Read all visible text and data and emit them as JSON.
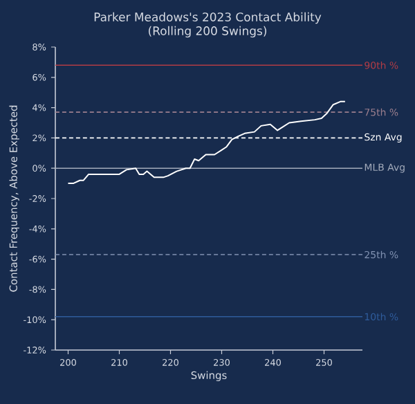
{
  "chart_data": {
    "type": "line",
    "title": "Parker Meadows's 2023 Contact Ability",
    "subtitle": "(Rolling 200 Swings)",
    "xlabel": "Swings",
    "ylabel": "Contact Frequency, Above Expected",
    "x": [
      200,
      201,
      202.3,
      203,
      204,
      206,
      208,
      210,
      211.4,
      213.2,
      213.9,
      214.7,
      215.4,
      216.8,
      218.6,
      219.5,
      221.2,
      223,
      223.8,
      224.7,
      225.5,
      226.9,
      228.6,
      230,
      230.9,
      232,
      233.2,
      234.5,
      236.4,
      237.7,
      239.5,
      240.9,
      241.8,
      243.2,
      245.5,
      248.2,
      249.5,
      250.5,
      251.8,
      253.2,
      254.1
    ],
    "series": [
      {
        "color": "#ffffff",
        "values": [
          -1.0,
          -1.0,
          -0.8,
          -0.8,
          -0.4,
          -0.4,
          -0.4,
          -0.4,
          -0.1,
          0,
          -0.4,
          -0.4,
          -0.2,
          -0.6,
          -0.6,
          -0.5,
          -0.2,
          0,
          0.0,
          0.6,
          0.5,
          0.9,
          0.9,
          1.2,
          1.4,
          1.9,
          2.1,
          2.3,
          2.4,
          2.8,
          2.9,
          2.5,
          2.7,
          3.0,
          3.1,
          3.2,
          3.3,
          3.6,
          4.2,
          4.4,
          4.4
        ]
      }
    ],
    "xlim": [
      197.5,
      257.5
    ],
    "ylim": [
      -12,
      8
    ],
    "xticks": [
      200,
      210,
      220,
      230,
      240,
      250
    ],
    "yticks": [
      {
        "value": -12,
        "label": "-12%"
      },
      {
        "value": -10,
        "label": "-10%"
      },
      {
        "value": -8,
        "label": "-8%"
      },
      {
        "value": -6,
        "label": "-6%"
      },
      {
        "value": -4,
        "label": "-4%"
      },
      {
        "value": -2,
        "label": "-2%"
      },
      {
        "value": 0,
        "label": "0%"
      },
      {
        "value": 2,
        "label": "2%"
      },
      {
        "value": 4,
        "label": "4%"
      },
      {
        "value": 6,
        "label": "6%"
      },
      {
        "value": 8,
        "label": "8%"
      }
    ],
    "ref_lines": [
      {
        "axis": "y",
        "value": 6.8,
        "label": "90th %",
        "color": "#b23c45",
        "line_style": "solid"
      },
      {
        "axis": "y",
        "value": 3.7,
        "label": "75th %",
        "color": "#9c7f8e",
        "line_style": "dashed"
      },
      {
        "axis": "y",
        "value": 2.0,
        "label": "Szn Avg",
        "color": "#ffffff",
        "line_style": "dashed"
      },
      {
        "axis": "y",
        "value": 0,
        "label": "MLB Avg",
        "color": "#a3abbb",
        "line_style": "solid"
      },
      {
        "axis": "y",
        "value": -5.7,
        "label": "25th %",
        "color": "#8293b3",
        "line_style": "dashed"
      },
      {
        "axis": "y",
        "value": -9.8,
        "label": "10th %",
        "color": "#2f5c9c",
        "line_style": "solid"
      }
    ],
    "grid": false,
    "marker": "none",
    "line_style": "solid"
  }
}
